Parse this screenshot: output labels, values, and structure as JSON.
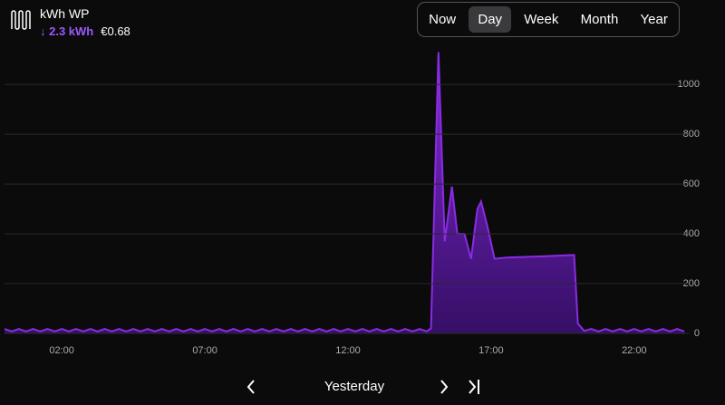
{
  "header": {
    "title": "kWh WP",
    "usage": "↓ 2.3 kWh",
    "cost": "€0.68"
  },
  "tabs": [
    "Now",
    "Day",
    "Week",
    "Month",
    "Year"
  ],
  "selected_tab": 1,
  "footer": {
    "period": "Yesterday"
  },
  "chart_data": {
    "type": "area",
    "color": "#8a2be2",
    "x": [
      0,
      0.25,
      0.5,
      0.75,
      1,
      1.25,
      1.5,
      1.75,
      2,
      2.25,
      2.5,
      2.75,
      3,
      3.25,
      3.5,
      3.75,
      4,
      4.25,
      4.5,
      4.75,
      5,
      5.25,
      5.5,
      5.75,
      6,
      6.25,
      6.5,
      6.75,
      7,
      7.25,
      7.5,
      7.75,
      8,
      8.25,
      8.5,
      8.75,
      9,
      9.25,
      9.5,
      9.75,
      10,
      10.25,
      10.5,
      10.75,
      11,
      11.25,
      11.5,
      11.75,
      12,
      12.25,
      12.5,
      12.75,
      13,
      13.25,
      13.5,
      13.75,
      14,
      14.25,
      14.5,
      14.75,
      14.9,
      15.16,
      15.38,
      15.63,
      15.82,
      16.07,
      16.3,
      16.52,
      16.65,
      16.87,
      17.12,
      17.56,
      18.83,
      19.9,
      20.03,
      20.25,
      20.5,
      20.75,
      21,
      21.25,
      21.5,
      21.75,
      22,
      22.25,
      22.5,
      22.75,
      23,
      23.25,
      23.5,
      23.75
    ],
    "values": [
      18,
      8,
      18,
      8,
      18,
      8,
      18,
      8,
      18,
      8,
      18,
      8,
      18,
      8,
      18,
      8,
      18,
      8,
      18,
      8,
      18,
      8,
      18,
      8,
      18,
      8,
      18,
      8,
      18,
      8,
      18,
      8,
      18,
      8,
      18,
      8,
      18,
      8,
      18,
      8,
      18,
      8,
      18,
      8,
      18,
      8,
      18,
      8,
      18,
      8,
      18,
      8,
      18,
      8,
      18,
      8,
      18,
      8,
      18,
      8,
      20,
      1130,
      370,
      590,
      400,
      400,
      300,
      500,
      530,
      430,
      300,
      305,
      310,
      315,
      40,
      10,
      18,
      8,
      18,
      8,
      18,
      8,
      18,
      8,
      18,
      8,
      18,
      8,
      18,
      8
    ],
    "xlim": [
      0,
      24
    ],
    "ylim": [
      0,
      1150
    ],
    "xticks": [
      {
        "value": 2,
        "label": "02:00"
      },
      {
        "value": 7,
        "label": "07:00"
      },
      {
        "value": 12,
        "label": "12:00"
      },
      {
        "value": 17,
        "label": "17:00"
      },
      {
        "value": 22,
        "label": "22:00"
      }
    ],
    "yticks": [
      0,
      200,
      400,
      600,
      800,
      1000
    ],
    "grid": true
  }
}
